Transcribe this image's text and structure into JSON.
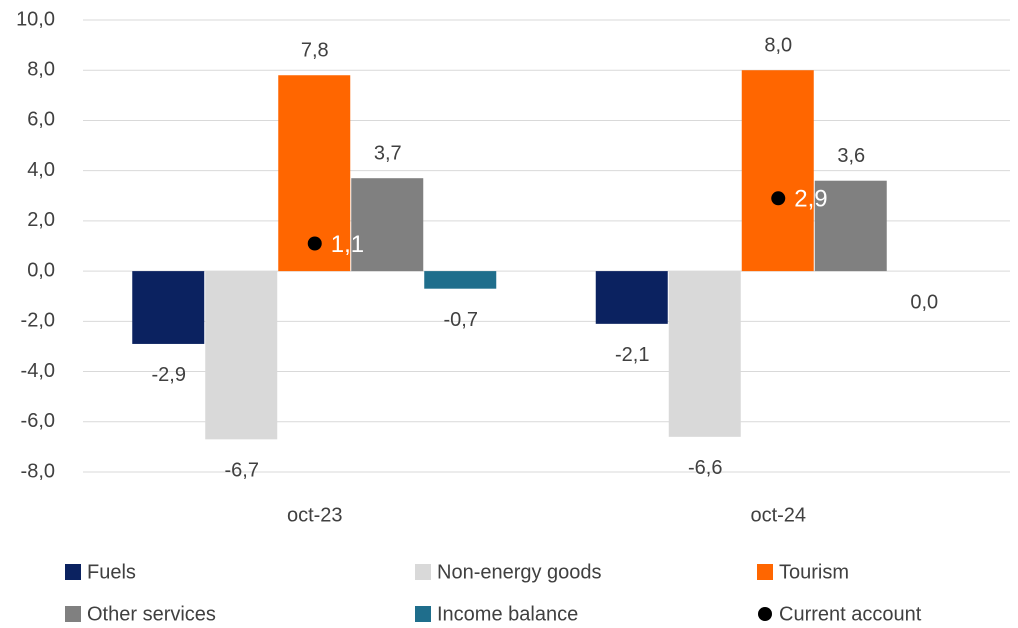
{
  "chart_data": {
    "type": "bar",
    "categories": [
      "oct-23",
      "oct-24"
    ],
    "series": [
      {
        "name": "Fuels",
        "color": "#0b2260",
        "values": [
          -2.9,
          -2.1
        ],
        "value_labels": [
          "-2,9",
          "-2,1"
        ]
      },
      {
        "name": "Non-energy goods",
        "color": "#d9d9d9",
        "values": [
          -6.7,
          -6.6
        ],
        "value_labels": [
          "-6,7",
          "-6,6"
        ]
      },
      {
        "name": "Tourism",
        "color": "#ff6600",
        "values": [
          7.8,
          8.0
        ],
        "value_labels": [
          "7,8",
          "8,0"
        ]
      },
      {
        "name": "Other services",
        "color": "#808080",
        "values": [
          3.7,
          3.6
        ],
        "value_labels": [
          "3,7",
          "3,6"
        ]
      },
      {
        "name": "Income balance",
        "color": "#1f6e8c",
        "values": [
          -0.7,
          0.0
        ],
        "value_labels": [
          "-0,7",
          "0,0"
        ]
      },
      {
        "name": "Current account",
        "color": "#000000",
        "type": "scatter",
        "label_color": "#ffffff",
        "values": [
          1.1,
          2.9
        ],
        "value_labels": [
          "1,1",
          "2,9"
        ]
      }
    ],
    "ylim": [
      -8,
      10
    ],
    "yticks": [
      {
        "value": -8,
        "label": "-8,0"
      },
      {
        "value": -6,
        "label": "-6,0"
      },
      {
        "value": -4,
        "label": "-4,0"
      },
      {
        "value": -2,
        "label": "-2,0"
      },
      {
        "value": 0,
        "label": "0,0"
      },
      {
        "value": 2,
        "label": "2,0"
      },
      {
        "value": 4,
        "label": "4,0"
      },
      {
        "value": 6,
        "label": "6,0"
      },
      {
        "value": 8,
        "label": "8,0"
      },
      {
        "value": 10,
        "label": "10,0"
      }
    ],
    "grid": true
  }
}
